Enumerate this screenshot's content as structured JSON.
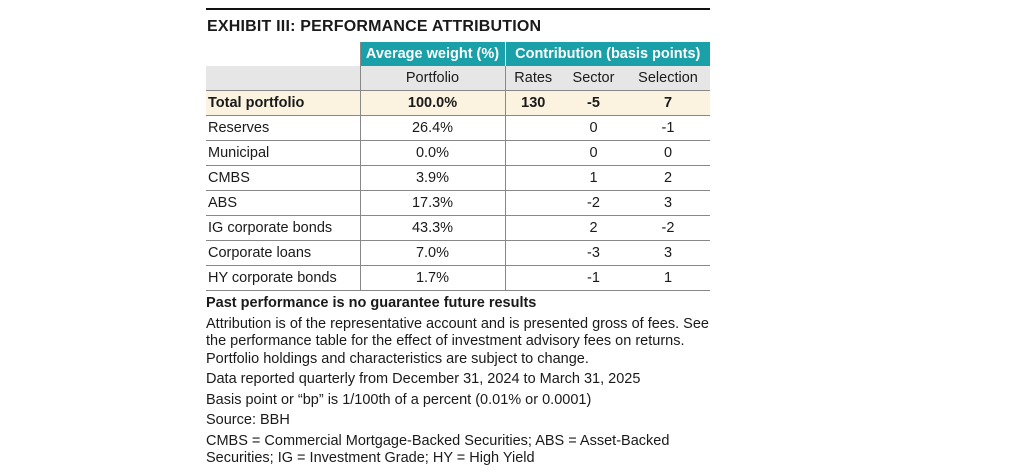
{
  "exhibit": {
    "title": "EXHIBIT III: PERFORMANCE ATTRIBUTION",
    "header": {
      "group_weight": "Average weight (%)",
      "group_contribution": "Contribution (basis points)",
      "col_portfolio": "Portfolio",
      "col_rates": "Rates",
      "col_sector": "Sector",
      "col_selection": "Selection"
    },
    "total": {
      "label": "Total portfolio",
      "weight": "100.0%",
      "rates": "130",
      "sector": "-5",
      "selection": "7"
    },
    "rows": [
      {
        "label": "Reserves",
        "weight": "26.4%",
        "rates": "",
        "sector": "0",
        "selection": "-1"
      },
      {
        "label": "Municipal",
        "weight": "0.0%",
        "rates": "",
        "sector": "0",
        "selection": "0"
      },
      {
        "label": "CMBS",
        "weight": "3.9%",
        "rates": "",
        "sector": "1",
        "selection": "2"
      },
      {
        "label": "ABS",
        "weight": "17.3%",
        "rates": "",
        "sector": "-2",
        "selection": "3"
      },
      {
        "label": "IG corporate bonds",
        "weight": "43.3%",
        "rates": "",
        "sector": "2",
        "selection": "-2"
      },
      {
        "label": "Corporate loans",
        "weight": "7.0%",
        "rates": "",
        "sector": "-3",
        "selection": "3"
      },
      {
        "label": "HY corporate bonds",
        "weight": "1.7%",
        "rates": "",
        "sector": "-1",
        "selection": "1"
      }
    ],
    "notes": {
      "warning": "Past performance is no guarantee future results",
      "attribution": "Attribution is of the representative account and is presented gross of fees. See the performance table for the effect of investment advisory fees on returns. Portfolio holdings and characteristics are subject to change.",
      "period": "Data reported quarterly from December 31, 2024 to March 31, 2025",
      "basis_point": "Basis point or “bp” is 1/100th of a percent (0.01% or 0.0001)",
      "source": "Source: BBH",
      "abbreviations": "CMBS = Commercial Mortgage-Backed Securities; ABS = Asset-Backed Securities; IG = Investment Grade; HY = High Yield"
    }
  }
}
